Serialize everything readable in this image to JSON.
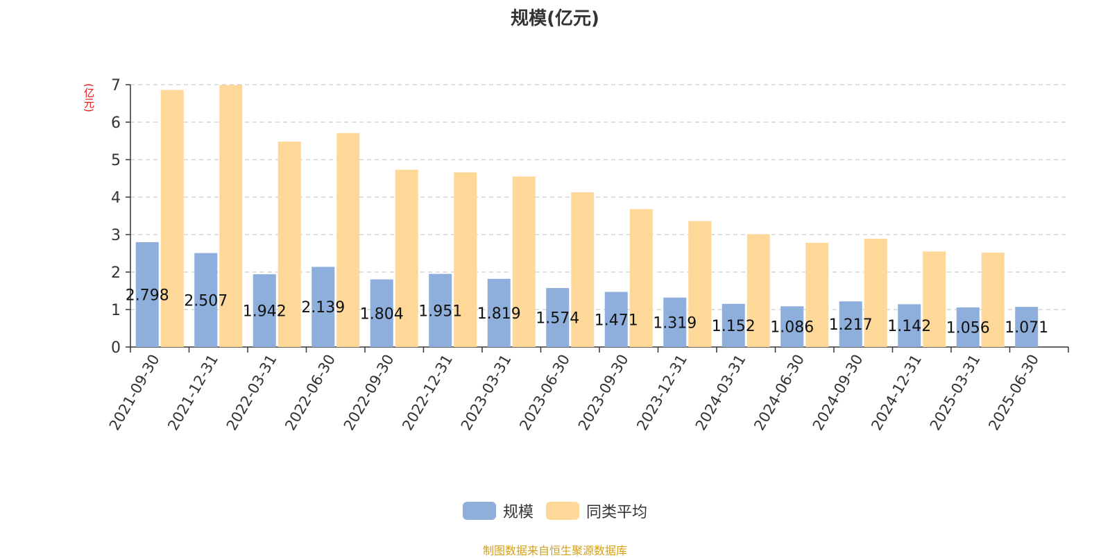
{
  "chart_data": {
    "type": "bar",
    "title": "规模(亿元)",
    "ylabel": "(亿元)",
    "ylim": [
      0,
      7
    ],
    "yticks": [
      0,
      1,
      2,
      3,
      4,
      5,
      6,
      7
    ],
    "grid": true,
    "legend_position": "bottom",
    "categories": [
      "2021-09-30",
      "2021-12-31",
      "2022-03-31",
      "2022-06-30",
      "2022-09-30",
      "2022-12-31",
      "2023-03-31",
      "2023-06-30",
      "2023-09-30",
      "2023-12-31",
      "2024-03-31",
      "2024-06-30",
      "2024-09-30",
      "2024-12-31",
      "2025-03-31",
      "2025-06-30"
    ],
    "series": [
      {
        "name": "规模",
        "color": "#8eaedc",
        "values": [
          2.798,
          2.507,
          1.942,
          2.139,
          1.804,
          1.951,
          1.819,
          1.574,
          1.471,
          1.319,
          1.152,
          1.086,
          1.217,
          1.142,
          1.056,
          1.071
        ],
        "data_labels": [
          "2.798",
          "2.507",
          "1.942",
          "2.139",
          "1.804",
          "1.951",
          "1.819",
          "1.574",
          "1.471",
          "1.319",
          "1.152",
          "1.086",
          "1.217",
          "1.142",
          "1.056",
          "1.071"
        ]
      },
      {
        "name": "同类平均",
        "color": "#fed898",
        "values": [
          6.86,
          6.99,
          5.48,
          5.71,
          4.73,
          4.66,
          4.55,
          4.13,
          3.68,
          3.36,
          3.01,
          2.78,
          2.89,
          2.55,
          2.52,
          null
        ]
      }
    ]
  },
  "footer": {
    "source": "制图数据来自恒生聚源数据库"
  }
}
